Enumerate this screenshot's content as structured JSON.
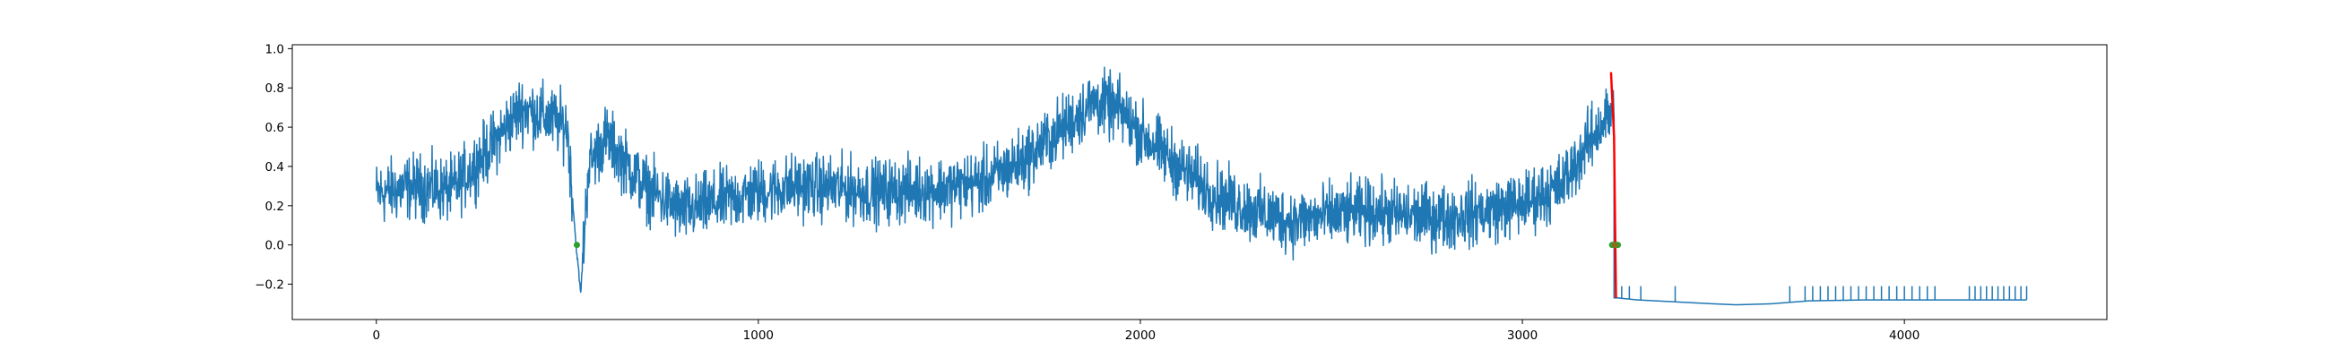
{
  "chart_data": {
    "type": "line",
    "title": "",
    "xlabel": "",
    "ylabel": "",
    "xlim": [
      -220,
      4530
    ],
    "ylim": [
      -0.38,
      1.02
    ],
    "grid": false,
    "legend": "none",
    "x_ticks": [
      0,
      1000,
      2000,
      3000,
      4000
    ],
    "x_tick_labels": [
      "0",
      "1000",
      "2000",
      "3000",
      "4000"
    ],
    "y_ticks": [
      -0.2,
      0.0,
      0.2,
      0.4,
      0.6,
      0.8,
      1.0
    ],
    "y_tick_labels": [
      "−0.2",
      "0.0",
      "0.2",
      "0.4",
      "0.6",
      "0.8",
      "1.0"
    ],
    "series": [
      {
        "color": "#1f77b4",
        "style": "line",
        "trend_x": [
          0,
          100,
          200,
          300,
          380,
          470,
          500,
          522,
          535,
          555,
          600,
          700,
          800,
          900,
          1000,
          1100,
          1200,
          1300,
          1400,
          1500,
          1600,
          1700,
          1800,
          1880,
          1950,
          2000,
          2100,
          2200,
          2300,
          2400,
          2500,
          2600,
          2700,
          2800,
          2900,
          3000,
          3100,
          3150,
          3200,
          3235,
          3240
        ],
        "trend_y": [
          0.26,
          0.3,
          0.28,
          0.5,
          0.7,
          0.63,
          0.6,
          0.02,
          -0.25,
          0.4,
          0.55,
          0.3,
          0.17,
          0.22,
          0.27,
          0.3,
          0.29,
          0.27,
          0.28,
          0.29,
          0.33,
          0.44,
          0.6,
          0.73,
          0.68,
          0.57,
          0.4,
          0.25,
          0.17,
          0.12,
          0.15,
          0.17,
          0.15,
          0.14,
          0.17,
          0.21,
          0.3,
          0.45,
          0.6,
          0.68,
          0.64
        ],
        "noise_amplitude": 0.08,
        "tail_x": [
          3240,
          3250,
          3300,
          3400,
          3500,
          3560,
          3650,
          3750,
          3900,
          4000,
          4100,
          4200,
          4320
        ],
        "tail_y": [
          -0.27,
          -0.27,
          -0.28,
          -0.29,
          -0.3,
          -0.305,
          -0.3,
          -0.285,
          -0.28,
          -0.28,
          -0.28,
          -0.28,
          -0.28
        ],
        "tail_spikes_x": [
          3260,
          3280,
          3310,
          3400,
          3700,
          3740,
          3760,
          3780,
          3800,
          3820,
          3840,
          3860,
          3880,
          3900,
          3920,
          3940,
          3960,
          3980,
          4000,
          4020,
          4040,
          4060,
          4080,
          4170,
          4185,
          4200,
          4215,
          4230,
          4245,
          4260,
          4275,
          4290,
          4305,
          4320
        ],
        "tail_spike_top": -0.21
      },
      {
        "color": "#ff0000",
        "style": "line",
        "x": [
          3232,
          3240,
          3245
        ],
        "y": [
          0.88,
          0.55,
          -0.27
        ]
      },
      {
        "color": "#2ca02c",
        "style": "markers",
        "x": [
          525,
          3235,
          3240,
          3245,
          3250
        ],
        "y": [
          0.0,
          0.0,
          0.0,
          0.0,
          0.0
        ]
      },
      {
        "color": "#8c6d1f",
        "style": "markers",
        "x": [
          3242
        ],
        "y": [
          0.0
        ]
      }
    ]
  }
}
